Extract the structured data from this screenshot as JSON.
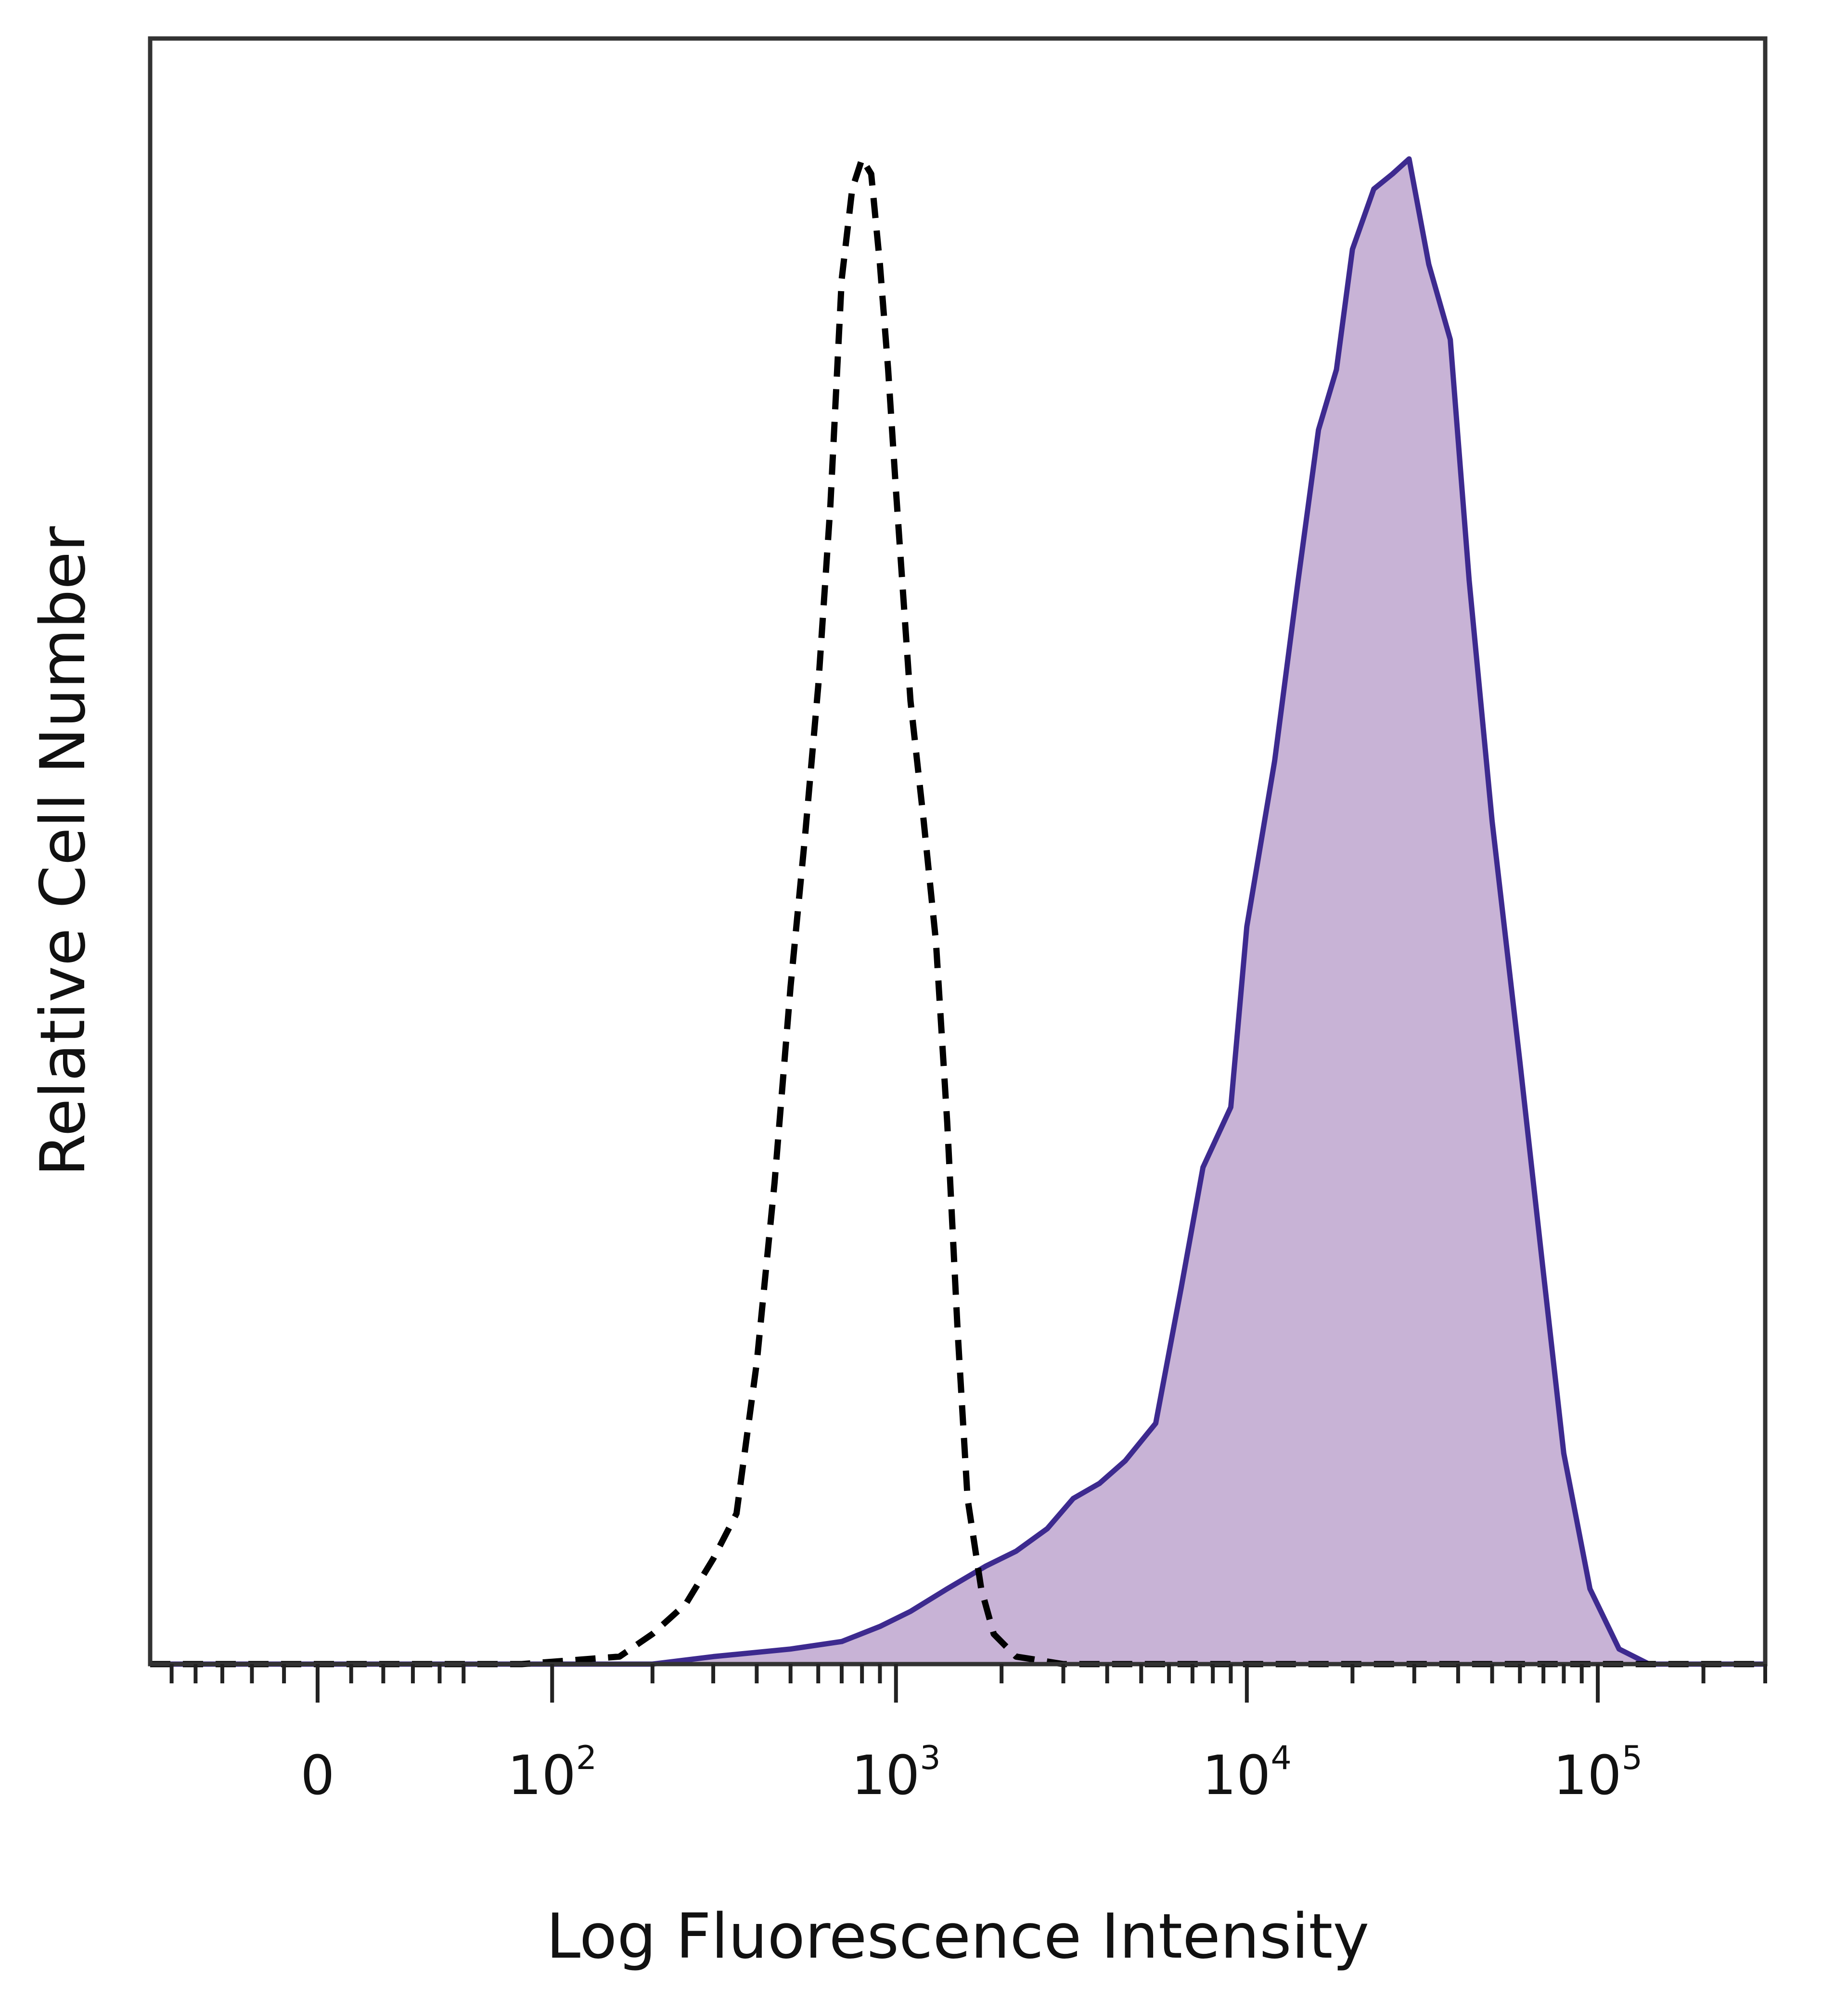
{
  "chart_data": {
    "type": "area",
    "title": "",
    "xlabel": "Log Fluorescence Intensity",
    "ylabel": "Relative Cell Number",
    "x_scale": "biexponential",
    "xlim": [
      -60,
      300000
    ],
    "ylim": [
      0,
      1.08
    ],
    "grid": false,
    "legend": "none",
    "x_tick_labels": [
      {
        "value": 0,
        "base": "0",
        "exp": ""
      },
      {
        "value": 100,
        "base": "10",
        "exp": "2"
      },
      {
        "value": 1000,
        "base": "10",
        "exp": "3"
      },
      {
        "value": 10000,
        "base": "10",
        "exp": "4"
      },
      {
        "value": 100000,
        "base": "10",
        "exp": "5"
      }
    ],
    "colors": {
      "stained_line": "#3d2a8f",
      "stained_fill": "#c8b3d6",
      "control_line": "#000000",
      "frame": "#333333"
    },
    "series": [
      {
        "style": "dashed-outline",
        "points": [
          [
            -60,
            0.0
          ],
          [
            0,
            0.0
          ],
          [
            80,
            0.0
          ],
          [
            160,
            0.005
          ],
          [
            200,
            0.02
          ],
          [
            250,
            0.04
          ],
          [
            300,
            0.07
          ],
          [
            350,
            0.1
          ],
          [
            400,
            0.2
          ],
          [
            450,
            0.32
          ],
          [
            500,
            0.45
          ],
          [
            550,
            0.55
          ],
          [
            600,
            0.65
          ],
          [
            650,
            0.77
          ],
          [
            700,
            0.92
          ],
          [
            750,
            0.98
          ],
          [
            800,
            1.0
          ],
          [
            850,
            0.99
          ],
          [
            900,
            0.93
          ],
          [
            950,
            0.86
          ],
          [
            1000,
            0.78
          ],
          [
            1100,
            0.64
          ],
          [
            1200,
            0.56
          ],
          [
            1300,
            0.48
          ],
          [
            1400,
            0.36
          ],
          [
            1500,
            0.22
          ],
          [
            1600,
            0.11
          ],
          [
            1750,
            0.05
          ],
          [
            1900,
            0.02
          ],
          [
            2200,
            0.005
          ],
          [
            3000,
            0.0
          ],
          [
            10000,
            0.0
          ],
          [
            300000,
            0.0
          ]
        ]
      },
      {
        "style": "filled",
        "points": [
          [
            -60,
            0.0
          ],
          [
            0,
            0.0
          ],
          [
            200,
            0.0
          ],
          [
            300,
            0.005
          ],
          [
            500,
            0.01
          ],
          [
            700,
            0.015
          ],
          [
            900,
            0.025
          ],
          [
            1100,
            0.035
          ],
          [
            1400,
            0.05
          ],
          [
            1800,
            0.065
          ],
          [
            2200,
            0.075
          ],
          [
            2700,
            0.09
          ],
          [
            3200,
            0.11
          ],
          [
            3800,
            0.12
          ],
          [
            4500,
            0.135
          ],
          [
            5500,
            0.16
          ],
          [
            6500,
            0.25
          ],
          [
            7500,
            0.33
          ],
          [
            9000,
            0.37
          ],
          [
            10000,
            0.49
          ],
          [
            12000,
            0.6
          ],
          [
            14000,
            0.72
          ],
          [
            16000,
            0.82
          ],
          [
            18000,
            0.86
          ],
          [
            20000,
            0.94
          ],
          [
            23000,
            0.98
          ],
          [
            26000,
            0.99
          ],
          [
            29000,
            1.0
          ],
          [
            33000,
            0.93
          ],
          [
            38000,
            0.88
          ],
          [
            43000,
            0.72
          ],
          [
            50000,
            0.56
          ],
          [
            60000,
            0.4
          ],
          [
            70000,
            0.26
          ],
          [
            80000,
            0.14
          ],
          [
            95000,
            0.05
          ],
          [
            115000,
            0.01
          ],
          [
            140000,
            0.0
          ],
          [
            300000,
            0.0
          ]
        ]
      }
    ]
  }
}
